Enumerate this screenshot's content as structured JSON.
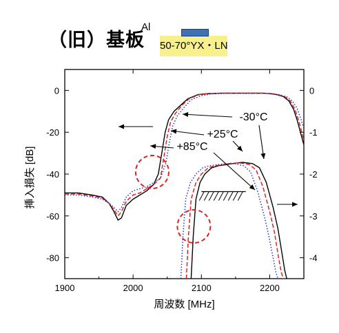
{
  "header": {
    "title": "（旧）基板",
    "electrode_label": "Al",
    "substrate_label": "50-70°YX・LN"
  },
  "colors": {
    "substrate_fill": "#f7f08c",
    "electrode_fill": "#3f6fb5",
    "minus30": "#000000",
    "plus25": "#e02020",
    "plus85": "#2030d0",
    "highlight_circle": "#e02020"
  },
  "chart_data": {
    "type": "line",
    "xlabel": "周波数 [MHz]",
    "ylabel": "挿入損失 [dB]",
    "xlim": [
      1900,
      2250
    ],
    "ylim_left": [
      -90,
      10
    ],
    "ylim_right": [
      -4.5,
      0.5
    ],
    "xticks": [
      "1900",
      "2000",
      "2100",
      "2200"
    ],
    "yticks_left": [
      "0",
      "-20",
      "-40",
      "-60",
      "-80"
    ],
    "yticks_right": [
      "0",
      "-1",
      "-2",
      "-3",
      "-4"
    ],
    "annotations": [
      "-30°C",
      "+25°C",
      "+85°C"
    ],
    "series": [
      {
        "name": "-30°C",
        "style": "solid",
        "axis": "left",
        "x": [
          1900,
          1920,
          1940,
          1955,
          1965,
          1972,
          1978,
          1983,
          1990,
          2000,
          2010,
          2020,
          2030,
          2037,
          2042,
          2047,
          2052,
          2060,
          2070,
          2080,
          2095,
          2110,
          2130,
          2150,
          2170,
          2190,
          2200,
          2210,
          2220,
          2228,
          2235,
          2240,
          2245,
          2250
        ],
        "y": [
          -49,
          -49,
          -50,
          -51,
          -54,
          -58,
          -62,
          -61,
          -55,
          -52,
          -50,
          -48,
          -45,
          -40,
          -30,
          -20,
          -14,
          -10,
          -7,
          -4,
          -2,
          -1.5,
          -1.3,
          -1.3,
          -1.3,
          -1.3,
          -1.5,
          -2,
          -3,
          -5,
          -9,
          -14,
          -20,
          -26
        ]
      },
      {
        "name": "+25°C",
        "style": "dashed",
        "axis": "left",
        "x": [
          1900,
          1920,
          1940,
          1955,
          1965,
          1972,
          1978,
          1983,
          1990,
          2000,
          2010,
          2020,
          2030,
          2040,
          2045,
          2050,
          2055,
          2062,
          2072,
          2082,
          2097,
          2112,
          2132,
          2152,
          2172,
          2192,
          2202,
          2212,
          2222,
          2230,
          2237,
          2242,
          2247,
          2250
        ],
        "y": [
          -49.5,
          -49.5,
          -50.5,
          -51.5,
          -54,
          -57,
          -60,
          -58,
          -53,
          -50,
          -49,
          -47,
          -45,
          -42,
          -32,
          -22,
          -15,
          -11,
          -7,
          -4,
          -2,
          -1.5,
          -1.3,
          -1.3,
          -1.3,
          -1.3,
          -1.5,
          -2,
          -3,
          -5,
          -9,
          -14,
          -20,
          -24
        ]
      },
      {
        "name": "+85°C",
        "style": "dotted",
        "axis": "left",
        "x": [
          1900,
          1920,
          1940,
          1955,
          1965,
          1972,
          1978,
          1983,
          1990,
          2000,
          2010,
          2020,
          2030,
          2040,
          2048,
          2053,
          2058,
          2065,
          2075,
          2085,
          2100,
          2115,
          2135,
          2155,
          2175,
          2195,
          2205,
          2215,
          2225,
          2233,
          2240,
          2245,
          2250
        ],
        "y": [
          -50,
          -50,
          -51,
          -52,
          -54,
          -56,
          -58,
          -56,
          -51,
          -48,
          -47,
          -46,
          -44,
          -42,
          -35,
          -25,
          -17,
          -12,
          -8,
          -4.5,
          -2.5,
          -1.7,
          -1.4,
          -1.4,
          -1.4,
          -1.4,
          -1.6,
          -2.1,
          -3.1,
          -5,
          -8.5,
          -13,
          -18
        ]
      },
      {
        "name": "-30°C",
        "style": "solid",
        "axis": "right",
        "x": [
          2085,
          2088,
          2092,
          2098,
          2105,
          2115,
          2125,
          2135,
          2145,
          2160,
          2175,
          2185,
          2195,
          2205,
          2212,
          2218,
          2222,
          2225
        ],
        "y": [
          -4.5,
          -3.5,
          -2.6,
          -2.2,
          -2.0,
          -1.85,
          -1.8,
          -1.78,
          -1.75,
          -1.72,
          -1.75,
          -1.85,
          -2.2,
          -2.8,
          -3.3,
          -3.9,
          -4.3,
          -4.5
        ]
      },
      {
        "name": "+25°C",
        "style": "dashed",
        "axis": "right",
        "x": [
          2078,
          2081,
          2085,
          2092,
          2100,
          2110,
          2120,
          2130,
          2140,
          2155,
          2170,
          2180,
          2190,
          2200,
          2207,
          2213,
          2217,
          2220
        ],
        "y": [
          -4.5,
          -3.5,
          -2.6,
          -2.2,
          -2.0,
          -1.85,
          -1.8,
          -1.78,
          -1.75,
          -1.73,
          -1.77,
          -1.9,
          -2.3,
          -2.9,
          -3.4,
          -4.0,
          -4.35,
          -4.5
        ]
      },
      {
        "name": "+85°C",
        "style": "dotted",
        "axis": "right",
        "x": [
          2070,
          2073,
          2077,
          2084,
          2092,
          2102,
          2112,
          2122,
          2132,
          2147,
          2162,
          2172,
          2182,
          2192,
          2199,
          2205,
          2209,
          2212
        ],
        "y": [
          -4.5,
          -3.5,
          -2.6,
          -2.2,
          -2.0,
          -1.85,
          -1.8,
          -1.78,
          -1.76,
          -1.75,
          -1.8,
          -1.95,
          -2.4,
          -3.0,
          -3.5,
          -4.0,
          -4.35,
          -4.5
        ]
      }
    ]
  }
}
